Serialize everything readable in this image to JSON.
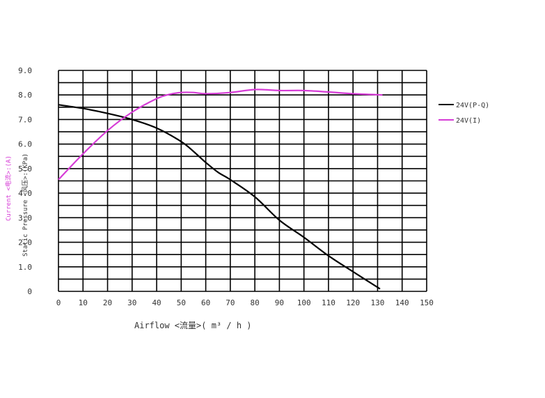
{
  "chart_data": {
    "type": "line",
    "xlabel": "Airflow <流量>( m³ / h )",
    "ylabel_pressure": "Static Pressure <风压>:(KPa)",
    "ylabel_current": "Current <电流>:(A)",
    "xlim": [
      0,
      150
    ],
    "ylim": [
      0,
      9
    ],
    "x_ticks": [
      "0",
      "10",
      "20",
      "30",
      "40",
      "50",
      "60",
      "70",
      "80",
      "90",
      "100",
      "110",
      "120",
      "130",
      "140",
      "150"
    ],
    "y_ticks": [
      "0",
      "1.0",
      "2.0",
      "3.0",
      "4.0",
      "5.0",
      "6.0",
      "7.0",
      "8.0",
      "9.0"
    ],
    "grid": true,
    "legend_position": "right",
    "series": [
      {
        "name": "24V(P-Q)",
        "color": "#000000",
        "x": [
          0,
          10,
          20,
          30,
          40,
          50,
          55,
          60,
          65,
          70,
          80,
          90,
          100,
          110,
          120,
          131
        ],
        "y": [
          7.6,
          7.45,
          7.25,
          7.0,
          6.65,
          6.1,
          5.7,
          5.25,
          4.85,
          4.55,
          3.85,
          2.9,
          2.2,
          1.45,
          0.8,
          0.1
        ]
      },
      {
        "name": "24V(I)",
        "color": "#d63cd6",
        "x": [
          0,
          10,
          20,
          30,
          40,
          45,
          50,
          55,
          60,
          70,
          80,
          90,
          100,
          110,
          120,
          132
        ],
        "y": [
          4.55,
          5.6,
          6.55,
          7.3,
          7.85,
          8.02,
          8.1,
          8.1,
          8.05,
          8.1,
          8.22,
          8.18,
          8.18,
          8.12,
          8.05,
          8.0
        ]
      }
    ]
  }
}
